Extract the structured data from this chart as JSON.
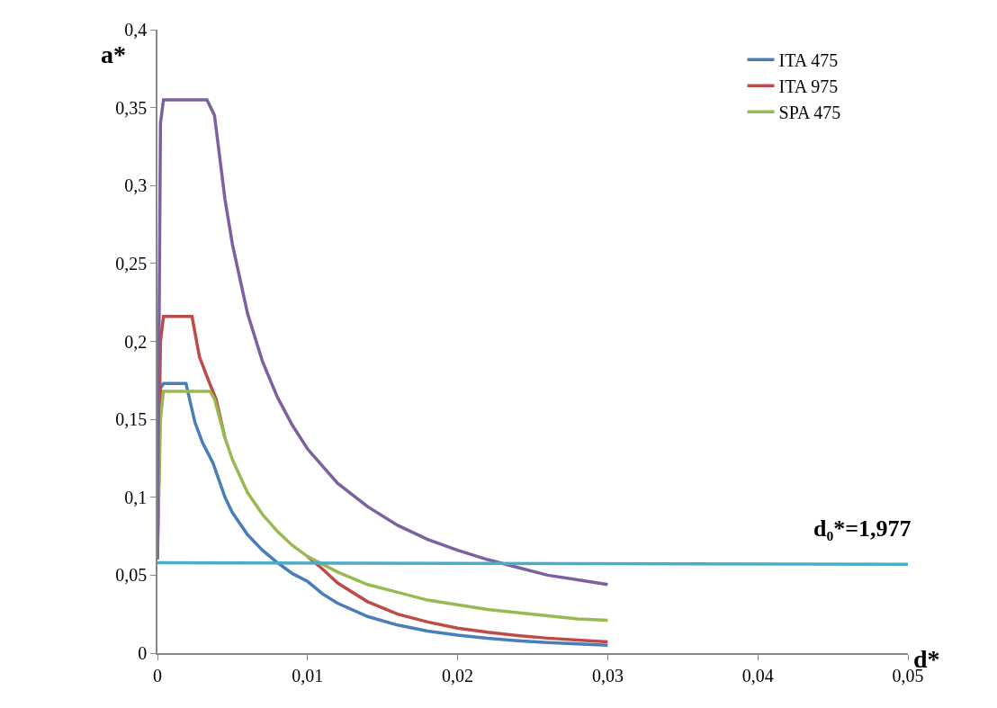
{
  "chart_data": {
    "type": "line",
    "xlabel": "d*",
    "ylabel": "a*",
    "xlim": [
      0,
      0.05
    ],
    "xticks": [
      0,
      {
        "value": 0.01,
        "label": "0,01"
      },
      {
        "value": 0.02,
        "label": "0,02"
      },
      {
        "value": 0.03,
        "label": "0,03"
      },
      {
        "value": 0.04,
        "label": "0,04"
      },
      {
        "value": 0.05,
        "label": "0,05"
      }
    ],
    "ylim": [
      0,
      0.4
    ],
    "yticks": [
      0,
      {
        "value": 0.05,
        "label": "0,05"
      },
      {
        "value": 0.1,
        "label": "0,1"
      },
      {
        "value": 0.15,
        "label": "0,15"
      },
      {
        "value": 0.2,
        "label": "0,2"
      },
      {
        "value": 0.25,
        "label": "0,25"
      },
      {
        "value": 0.3,
        "label": "0,3"
      },
      {
        "value": 0.35,
        "label": "0,35"
      },
      {
        "value": 0.4,
        "label": "0,4"
      }
    ],
    "grid": false,
    "legend": "top right",
    "marker": "none",
    "line_style": "solid",
    "annotations": [
      "d₀*=1,977"
    ],
    "series": [
      {
        "name": "ITA 475",
        "color": "#4a7ebb",
        "x": [
          0,
          0.0002,
          0.0004,
          0.0019,
          0.0025,
          0.003,
          0.0037,
          0.0045,
          0.005,
          0.006,
          0.007,
          0.008,
          0.009,
          0.01,
          0.011,
          0.012,
          0.014,
          0.016,
          0.018,
          0.02,
          0.022,
          0.024,
          0.026,
          0.028,
          0.03
        ],
        "values": [
          0.065,
          0.17,
          0.173,
          0.173,
          0.148,
          0.135,
          0.122,
          0.1,
          0.09,
          0.076,
          0.066,
          0.058,
          0.051,
          0.046,
          0.038,
          0.032,
          0.0235,
          0.018,
          0.0142,
          0.0115,
          0.0095,
          0.008,
          0.0068,
          0.0059,
          0.0051
        ]
      },
      {
        "name": "ITA 975",
        "color": "#be4b48",
        "x": [
          0,
          0.0002,
          0.0004,
          0.0023,
          0.0028,
          0.0034,
          0.0039,
          0.0045,
          0.005,
          0.006,
          0.007,
          0.008,
          0.009,
          0.01,
          0.011,
          0.012,
          0.014,
          0.016,
          0.018,
          0.02,
          0.022,
          0.024,
          0.026,
          0.028,
          0.03
        ],
        "values": [
          0.065,
          0.2,
          0.216,
          0.216,
          0.19,
          0.175,
          0.163,
          0.138,
          null,
          null,
          null,
          null,
          null,
          0.062,
          0.054,
          0.045,
          0.033,
          0.025,
          0.02,
          0.016,
          0.0134,
          0.0113,
          0.0096,
          0.0083,
          0.0072
        ]
      },
      {
        "name": "SPA 475",
        "color": "#98b954",
        "x": [
          0,
          0.0002,
          0.0004,
          0.0035,
          0.0038,
          0.0045,
          0.005,
          0.006,
          0.007,
          0.008,
          0.009,
          0.01,
          0.012,
          0.014,
          0.016,
          0.018,
          0.02,
          0.022,
          0.024,
          0.026,
          0.028,
          0.03
        ],
        "values": [
          0.06,
          0.15,
          0.168,
          0.168,
          0.163,
          0.138,
          0.124,
          0.103,
          0.089,
          0.078,
          0.069,
          0.062,
          0.052,
          0.044,
          0.039,
          0.034,
          0.031,
          0.028,
          0.026,
          0.024,
          0.022,
          0.021
        ]
      },
      {
        "color": "#7d60a0",
        "x": [
          0,
          0.0002,
          0.0004,
          0.0033,
          0.0038,
          0.0045,
          0.005,
          0.006,
          0.007,
          0.008,
          0.009,
          0.01,
          0.012,
          0.014,
          0.016,
          0.018,
          0.02,
          0.022,
          0.024,
          0.026,
          0.028,
          0.03
        ],
        "values": [
          0.06,
          0.34,
          0.355,
          0.355,
          0.345,
          0.291,
          0.262,
          0.218,
          0.187,
          0.164,
          0.146,
          0.131,
          0.109,
          0.094,
          0.082,
          0.073,
          0.066,
          0.06,
          0.055,
          0.05,
          0.047,
          0.044
        ]
      },
      {
        "color": "#4bacc6",
        "x": [
          0,
          0.05
        ],
        "values": [
          0.058,
          0.057
        ]
      }
    ]
  }
}
